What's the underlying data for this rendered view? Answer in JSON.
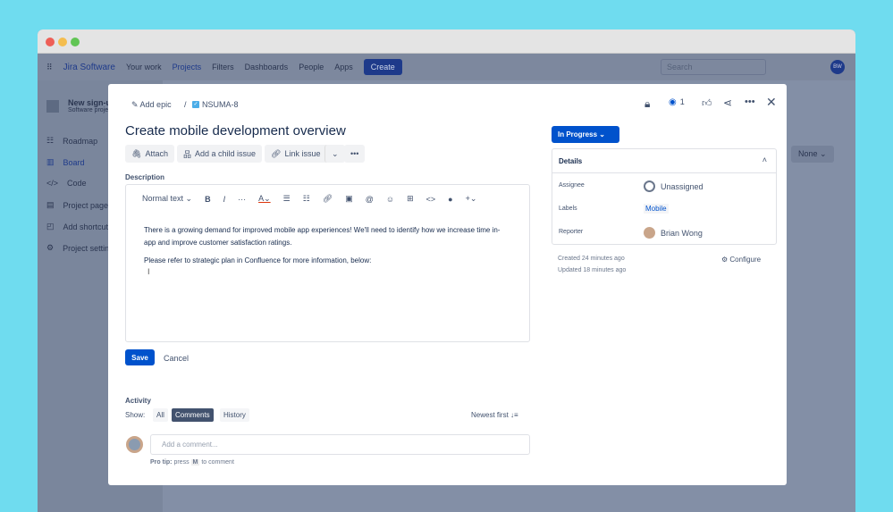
{
  "nav": {
    "logo": "Jira Software",
    "items": [
      "Your work",
      "Projects",
      "Filters",
      "Dashboards",
      "People",
      "Apps"
    ],
    "create": "Create",
    "search_placeholder": "Search",
    "avatar": "BW"
  },
  "sidebar": {
    "project_name": "New sign-up",
    "project_type": "Software project",
    "items": [
      "Roadmap",
      "Board",
      "Code",
      "Project pages",
      "Add shortcut",
      "Project settings"
    ]
  },
  "background": {
    "filter": "None"
  },
  "modal": {
    "breadcrumb": {
      "epic": "Add epic",
      "sep": "/",
      "issue_key": "NSUMA-8"
    },
    "header": {
      "watch_count": "1"
    },
    "title": "Create mobile development overview",
    "actions": {
      "attach": "Attach",
      "child": "Add a child issue",
      "link": "Link issue"
    },
    "description": {
      "label": "Description",
      "text_style": "Normal text",
      "paragraphs": [
        "There is a growing demand for improved mobile app experiences! We'll need to identify how we increase time in-app and improve customer satisfaction ratings.",
        "Please refer to strategic plan in Confluence for more information, below:"
      ],
      "save": "Save",
      "cancel": "Cancel"
    },
    "activity": {
      "label": "Activity",
      "show": "Show:",
      "filters": [
        "All",
        "Comments",
        "History"
      ],
      "active": "Comments",
      "sort": "Newest first",
      "comment_placeholder": "Add a comment...",
      "tip_bold": "Pro tip:",
      "tip_pre": "press",
      "tip_key": "M",
      "tip_post": "to comment"
    },
    "status": "In Progress",
    "details": {
      "title": "Details",
      "rows": [
        {
          "label": "Assignee",
          "value": "Unassigned"
        },
        {
          "label": "Labels",
          "value": "Mobile"
        },
        {
          "label": "Reporter",
          "value": "Brian Wong"
        }
      ]
    },
    "created": "Created 24 minutes ago",
    "updated": "Updated 18 minutes ago",
    "configure": "Configure"
  },
  "colors": {
    "primary": "#0052cc",
    "background": "#6fdcef"
  }
}
